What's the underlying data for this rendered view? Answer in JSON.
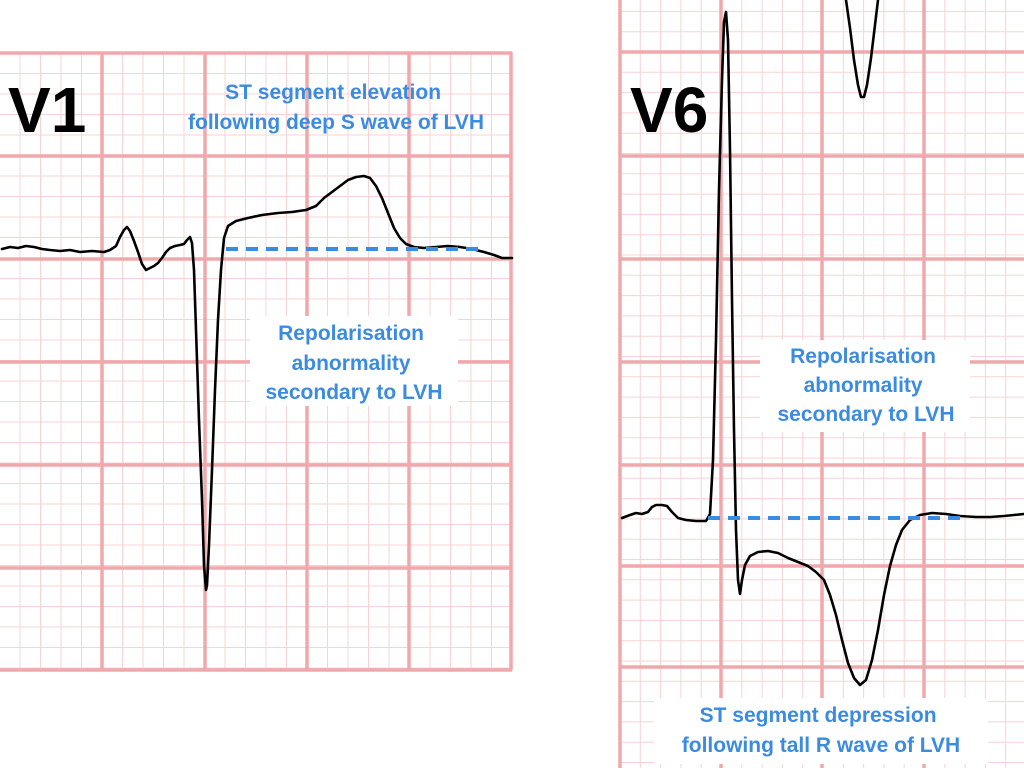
{
  "panels": [
    {
      "lead": "V1",
      "annotations": [
        [
          "ST segment elevation",
          "following deep S wave of LVH"
        ],
        [
          "Repolarisation",
          "abnormality",
          "secondary to LVH"
        ]
      ]
    },
    {
      "lead": "V6",
      "annotations": [
        [
          "Repolarisation",
          "abnormality",
          "secondary to LVH"
        ],
        [
          "ST segment depression",
          "following tall R wave of LVH"
        ]
      ]
    }
  ],
  "colors": {
    "background": "#ffffff",
    "grid_major": "#f0a8ac",
    "grid_minor": "#f8d3d5",
    "trace": "#000000",
    "annotation": "#3b8be0"
  }
}
